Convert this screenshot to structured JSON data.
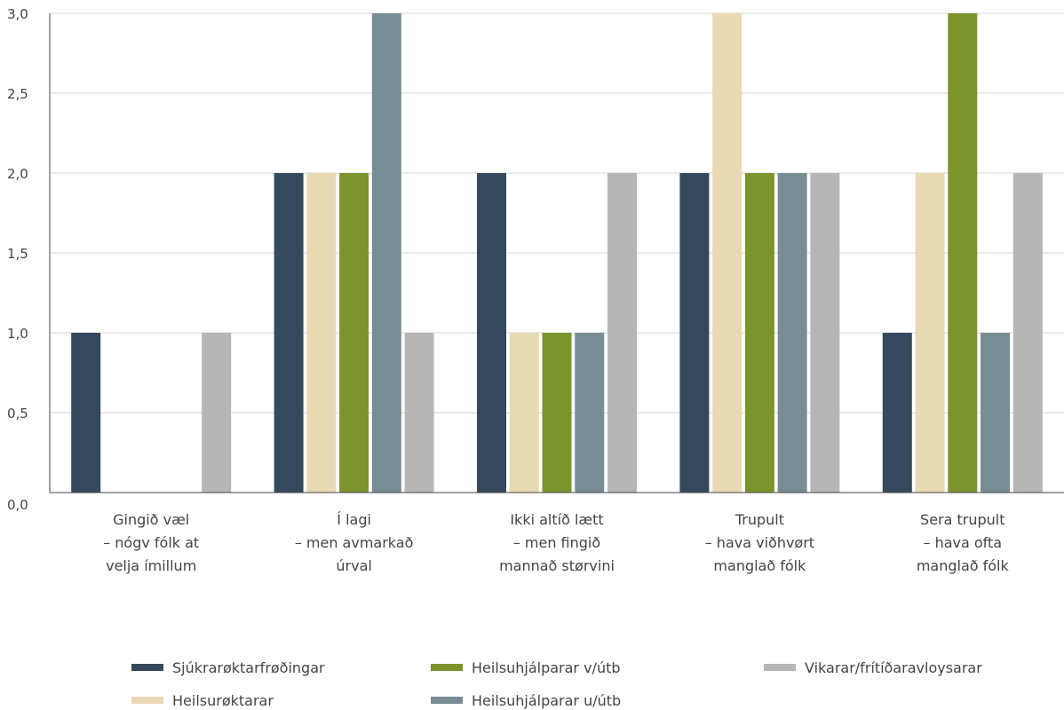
{
  "chart_data": {
    "type": "bar",
    "categories": [
      [
        "Gingið væl",
        "– nógv fólk at",
        "velja ímillum"
      ],
      [
        "Í lagi",
        "– men avmarkað",
        "úrval"
      ],
      [
        "Ikki altíð lætt",
        "– men fingið",
        "mannað størvini"
      ],
      [
        "Trupult",
        "– hava viðhvørt",
        "manglað fólk"
      ],
      [
        "Sera trupult",
        "– hava ofta",
        "manglað fólk"
      ]
    ],
    "series": [
      {
        "name": "Sjúkrarøktarfrøðingar",
        "color": "#34495c",
        "values": [
          1,
          2,
          2,
          2,
          1
        ]
      },
      {
        "name": "Heilsurøktarar",
        "color": "#e8dab5",
        "values": [
          0,
          2,
          1,
          3,
          2
        ]
      },
      {
        "name": "Heilsuhjálparar v/útb",
        "color": "#7d932c",
        "values": [
          0,
          2,
          1,
          2,
          3
        ]
      },
      {
        "name": "Heilsuhjálparar u/útb",
        "color": "#778d93",
        "values": [
          0,
          3,
          1,
          2,
          1
        ]
      },
      {
        "name": "Vikarar/frítíðaravloysarar",
        "color": "#b5b6b5",
        "values": [
          1,
          1,
          2,
          2,
          2
        ]
      }
    ],
    "ylim": [
      0,
      3
    ],
    "yticks": [
      "0,0",
      "0,5",
      "1,0",
      "1,5",
      "2,0",
      "2,5",
      "3,0"
    ],
    "grid": true,
    "legend_position": "bottom",
    "title": "",
    "xlabel": "",
    "ylabel": ""
  }
}
